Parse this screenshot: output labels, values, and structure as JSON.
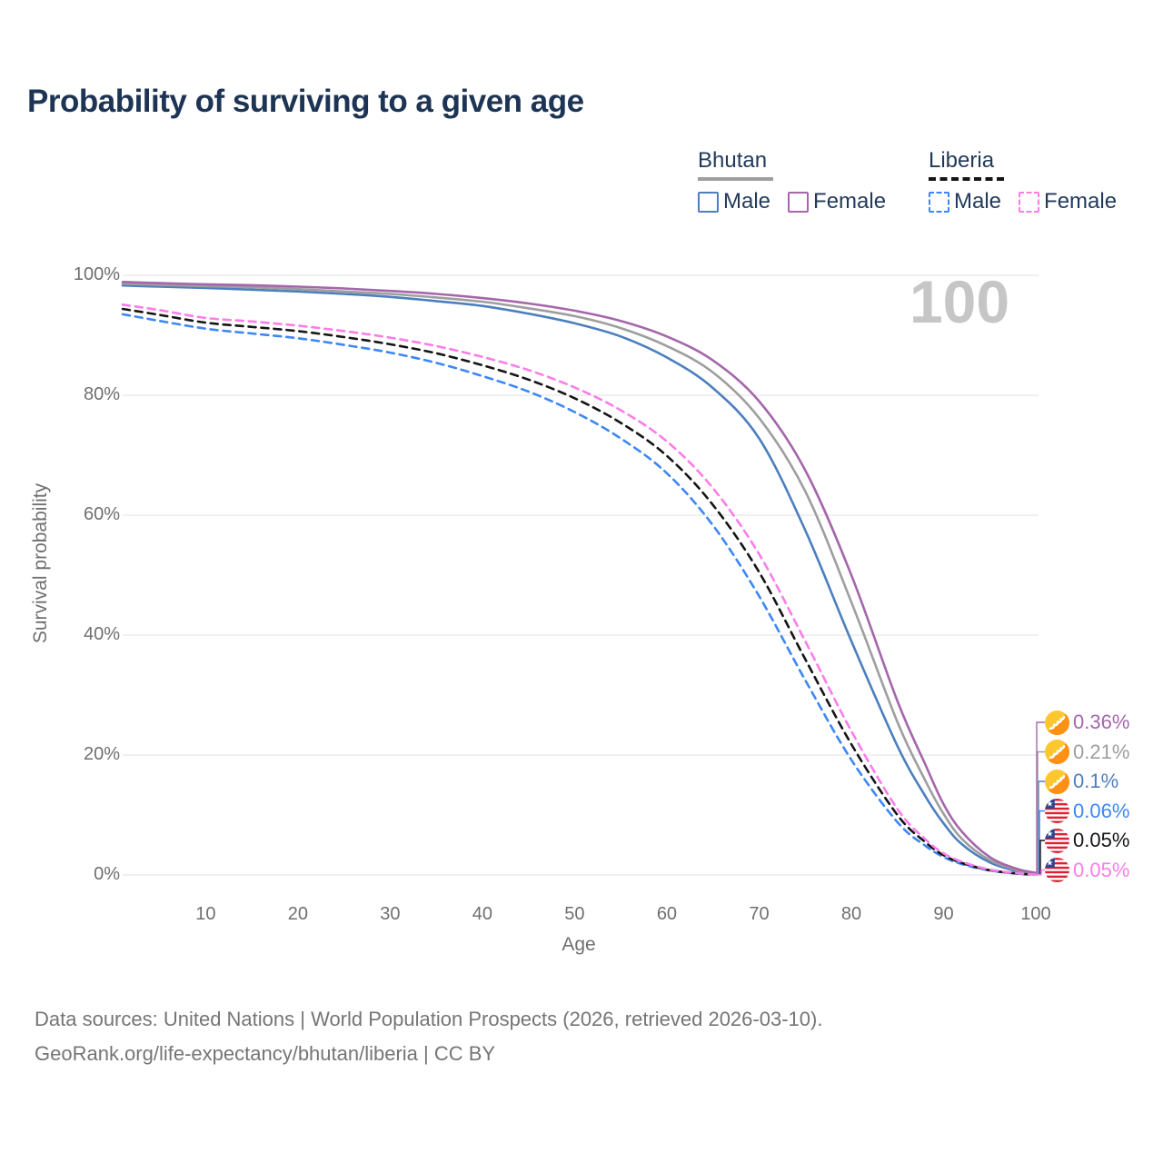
{
  "title": "Probability of surviving to a given age",
  "watermark": "100",
  "colors": {
    "title_text": "#1d3454",
    "legend_text": "#223a5a",
    "axis_text": "#6f6f6f",
    "grid": "#ebebeb",
    "watermark": "#c6c6c6",
    "bhutan_male": "#4c7fbe",
    "bhutan_total": "#9e9e9e",
    "bhutan_female": "#a566ab",
    "liberia_male": "#3d87f5",
    "liberia_total": "#151515",
    "liberia_female": "#fb7de9"
  },
  "legend": {
    "groups": [
      {
        "name": "Bhutan",
        "underline_style": "solid",
        "underline_color": "#9e9e9e",
        "items": [
          {
            "label": "Male",
            "color": "#4c7fbe",
            "dash": false
          },
          {
            "label": "Female",
            "color": "#a566ab",
            "dash": false
          }
        ]
      },
      {
        "name": "Liberia",
        "underline_style": "dashed",
        "underline_color": "#151515",
        "items": [
          {
            "label": "Male",
            "color": "#3d87f5",
            "dash": true
          },
          {
            "label": "Female",
            "color": "#fb7de9",
            "dash": true
          }
        ]
      }
    ]
  },
  "chart_data": {
    "type": "line",
    "title": "Probability of surviving to a given age",
    "xlabel": "Age",
    "ylabel": "Survival probability",
    "xlim": [
      1,
      100
    ],
    "ylim": [
      0,
      100
    ],
    "grid": "horizontal",
    "legend_position": "top-right",
    "x_ticks": [
      {
        "value": 10,
        "label": "10"
      },
      {
        "value": 20,
        "label": "20"
      },
      {
        "value": 30,
        "label": "30"
      },
      {
        "value": 40,
        "label": "40"
      },
      {
        "value": 50,
        "label": "50"
      },
      {
        "value": 60,
        "label": "60"
      },
      {
        "value": 70,
        "label": "70"
      },
      {
        "value": 80,
        "label": "80"
      },
      {
        "value": 90,
        "label": "90"
      },
      {
        "value": 100,
        "label": "100"
      }
    ],
    "y_ticks": [
      {
        "value": 0,
        "label": "0%"
      },
      {
        "value": 20,
        "label": "20%"
      },
      {
        "value": 40,
        "label": "40%"
      },
      {
        "value": 60,
        "label": "60%"
      },
      {
        "value": 80,
        "label": "80%"
      },
      {
        "value": 100,
        "label": "100%"
      }
    ],
    "hover_age": "100",
    "series": [
      {
        "name": "Bhutan Male",
        "country": "bhutan",
        "sex": "Male",
        "color": "#4c7fbe",
        "dash": false,
        "end_label": "0.1%",
        "label_row": 2,
        "points": [
          [
            1,
            98.3
          ],
          [
            5,
            98.1
          ],
          [
            10,
            97.9
          ],
          [
            15,
            97.6
          ],
          [
            20,
            97.3
          ],
          [
            25,
            96.9
          ],
          [
            30,
            96.4
          ],
          [
            35,
            95.7
          ],
          [
            40,
            94.9
          ],
          [
            45,
            93.6
          ],
          [
            50,
            92.0
          ],
          [
            55,
            89.8
          ],
          [
            60,
            86.3
          ],
          [
            65,
            81.2
          ],
          [
            70,
            72.8
          ],
          [
            75,
            57.5
          ],
          [
            80,
            39.0
          ],
          [
            85,
            21.5
          ],
          [
            88,
            13.2
          ],
          [
            90,
            8.6
          ],
          [
            92,
            5.1
          ],
          [
            95,
            2.1
          ],
          [
            98,
            0.6
          ],
          [
            100,
            0.1
          ]
        ]
      },
      {
        "name": "Bhutan Total",
        "country": "bhutan",
        "sex": "Total",
        "color": "#9e9e9e",
        "dash": false,
        "end_label": "0.21%",
        "label_row": 1,
        "points": [
          [
            1,
            98.6
          ],
          [
            5,
            98.4
          ],
          [
            10,
            98.2
          ],
          [
            15,
            98.0
          ],
          [
            20,
            97.7
          ],
          [
            25,
            97.3
          ],
          [
            30,
            96.9
          ],
          [
            35,
            96.3
          ],
          [
            40,
            95.6
          ],
          [
            45,
            94.5
          ],
          [
            50,
            93.2
          ],
          [
            55,
            91.2
          ],
          [
            60,
            88.2
          ],
          [
            65,
            83.8
          ],
          [
            70,
            76.2
          ],
          [
            75,
            64.0
          ],
          [
            80,
            45.5
          ],
          [
            85,
            25.5
          ],
          [
            88,
            15.8
          ],
          [
            90,
            10.2
          ],
          [
            92,
            6.0
          ],
          [
            95,
            2.5
          ],
          [
            98,
            0.8
          ],
          [
            100,
            0.21
          ]
        ]
      },
      {
        "name": "Bhutan Female",
        "country": "bhutan",
        "sex": "Female",
        "color": "#a566ab",
        "dash": false,
        "end_label": "0.36%",
        "label_row": 0,
        "points": [
          [
            1,
            98.9
          ],
          [
            5,
            98.7
          ],
          [
            10,
            98.5
          ],
          [
            15,
            98.35
          ],
          [
            20,
            98.1
          ],
          [
            25,
            97.8
          ],
          [
            30,
            97.4
          ],
          [
            35,
            96.9
          ],
          [
            40,
            96.2
          ],
          [
            45,
            95.3
          ],
          [
            50,
            94.1
          ],
          [
            55,
            92.4
          ],
          [
            60,
            89.8
          ],
          [
            65,
            85.8
          ],
          [
            70,
            79.0
          ],
          [
            75,
            67.5
          ],
          [
            80,
            50.0
          ],
          [
            85,
            29.0
          ],
          [
            88,
            18.5
          ],
          [
            90,
            11.8
          ],
          [
            92,
            7.2
          ],
          [
            95,
            3.0
          ],
          [
            98,
            1.0
          ],
          [
            100,
            0.36
          ]
        ]
      },
      {
        "name": "Liberia Male",
        "country": "liberia",
        "sex": "Male",
        "color": "#3d87f5",
        "dash": true,
        "end_label": "0.06%",
        "label_row": 3,
        "points": [
          [
            1,
            93.5
          ],
          [
            5,
            92.4
          ],
          [
            10,
            91.1
          ],
          [
            15,
            90.3
          ],
          [
            20,
            89.5
          ],
          [
            25,
            88.4
          ],
          [
            30,
            87.1
          ],
          [
            35,
            85.4
          ],
          [
            40,
            83.2
          ],
          [
            45,
            80.6
          ],
          [
            50,
            77.2
          ],
          [
            55,
            72.8
          ],
          [
            60,
            67.0
          ],
          [
            65,
            58.3
          ],
          [
            70,
            46.5
          ],
          [
            75,
            32.5
          ],
          [
            80,
            19.2
          ],
          [
            85,
            8.8
          ],
          [
            88,
            4.9
          ],
          [
            90,
            3.0
          ],
          [
            92,
            1.8
          ],
          [
            95,
            0.75
          ],
          [
            98,
            0.22
          ],
          [
            100,
            0.06
          ]
        ]
      },
      {
        "name": "Liberia Total",
        "country": "liberia",
        "sex": "Total",
        "color": "#151515",
        "dash": true,
        "end_label": "0.05%",
        "label_row": 4,
        "points": [
          [
            1,
            94.4
          ],
          [
            5,
            93.4
          ],
          [
            10,
            92.1
          ],
          [
            15,
            91.4
          ],
          [
            20,
            90.7
          ],
          [
            25,
            89.7
          ],
          [
            30,
            88.5
          ],
          [
            35,
            87.0
          ],
          [
            40,
            85.0
          ],
          [
            45,
            82.6
          ],
          [
            50,
            79.5
          ],
          [
            55,
            75.4
          ],
          [
            60,
            69.9
          ],
          [
            65,
            61.7
          ],
          [
            70,
            50.5
          ],
          [
            75,
            36.0
          ],
          [
            80,
            21.8
          ],
          [
            85,
            10.0
          ],
          [
            88,
            5.5
          ],
          [
            90,
            3.3
          ],
          [
            92,
            2.0
          ],
          [
            95,
            0.8
          ],
          [
            98,
            0.25
          ],
          [
            100,
            0.05
          ]
        ]
      },
      {
        "name": "Liberia Female",
        "country": "liberia",
        "sex": "Female",
        "color": "#fb7de9",
        "dash": true,
        "end_label": "0.05%",
        "label_row": 5,
        "points": [
          [
            1,
            95.1
          ],
          [
            5,
            94.2
          ],
          [
            10,
            92.9
          ],
          [
            15,
            92.3
          ],
          [
            20,
            91.6
          ],
          [
            25,
            90.7
          ],
          [
            30,
            89.6
          ],
          [
            35,
            88.2
          ],
          [
            40,
            86.4
          ],
          [
            45,
            84.2
          ],
          [
            50,
            81.3
          ],
          [
            55,
            77.5
          ],
          [
            60,
            72.3
          ],
          [
            65,
            64.5
          ],
          [
            70,
            53.5
          ],
          [
            75,
            39.0
          ],
          [
            80,
            24.0
          ],
          [
            85,
            11.0
          ],
          [
            88,
            6.0
          ],
          [
            90,
            3.6
          ],
          [
            92,
            2.2
          ],
          [
            95,
            0.9
          ],
          [
            98,
            0.3
          ],
          [
            100,
            0.05
          ]
        ]
      }
    ]
  },
  "footer": {
    "line1": "Data sources: United Nations | World Population Prospects (2026, retrieved 2026-03-10).",
    "line2": "GeoRank.org/life-expectancy/bhutan/liberia | CC BY"
  }
}
